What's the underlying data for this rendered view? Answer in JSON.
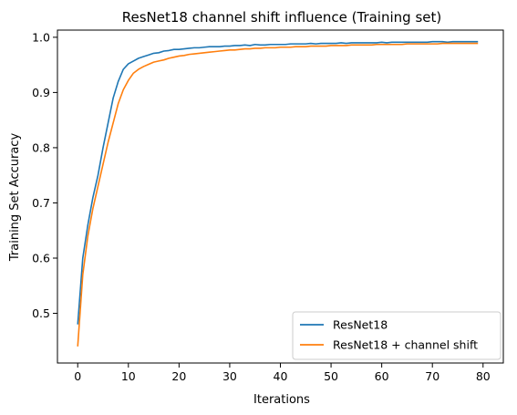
{
  "chart_data": {
    "type": "line",
    "title": "ResNet18 channel shift influence (Training set)",
    "xlabel": "Iterations",
    "ylabel": "Training Set Accuracy",
    "xlim": [
      -4,
      84
    ],
    "ylim": [
      0.41,
      1.013
    ],
    "xticks": [
      0,
      10,
      20,
      30,
      40,
      50,
      60,
      70,
      80
    ],
    "yticks": [
      0.5,
      0.6,
      0.7,
      0.8,
      0.9,
      1.0
    ],
    "xtick_labels": [
      "0",
      "10",
      "20",
      "30",
      "40",
      "50",
      "60",
      "70",
      "80"
    ],
    "ytick_labels": [
      "0.5",
      "0.6",
      "0.7",
      "0.8",
      "0.9",
      "1.0"
    ],
    "grid": false,
    "legend_position": "lower-right",
    "series": [
      {
        "name": "ResNet18",
        "color": "#1f77b4",
        "x": [
          0,
          1,
          2,
          3,
          4,
          5,
          6,
          7,
          8,
          9,
          10,
          11,
          12,
          13,
          14,
          15,
          16,
          17,
          18,
          19,
          20,
          21,
          22,
          23,
          24,
          25,
          26,
          27,
          28,
          29,
          30,
          31,
          32,
          33,
          34,
          35,
          36,
          37,
          38,
          39,
          40,
          41,
          42,
          43,
          44,
          45,
          46,
          47,
          48,
          49,
          50,
          51,
          52,
          53,
          54,
          55,
          56,
          57,
          58,
          59,
          60,
          61,
          62,
          63,
          64,
          65,
          66,
          67,
          68,
          69,
          70,
          71,
          72,
          73,
          74,
          75,
          76,
          77,
          78,
          79
        ],
        "values": [
          0.48,
          0.6,
          0.66,
          0.71,
          0.75,
          0.8,
          0.845,
          0.89,
          0.92,
          0.942,
          0.952,
          0.957,
          0.962,
          0.965,
          0.968,
          0.971,
          0.972,
          0.975,
          0.976,
          0.978,
          0.978,
          0.979,
          0.98,
          0.981,
          0.981,
          0.982,
          0.983,
          0.983,
          0.983,
          0.984,
          0.984,
          0.985,
          0.985,
          0.986,
          0.985,
          0.987,
          0.986,
          0.986,
          0.987,
          0.987,
          0.987,
          0.987,
          0.988,
          0.988,
          0.988,
          0.988,
          0.989,
          0.988,
          0.989,
          0.989,
          0.989,
          0.989,
          0.99,
          0.989,
          0.99,
          0.99,
          0.99,
          0.99,
          0.99,
          0.99,
          0.991,
          0.99,
          0.991,
          0.991,
          0.991,
          0.991,
          0.991,
          0.991,
          0.991,
          0.991,
          0.992,
          0.992,
          0.992,
          0.991,
          0.992,
          0.992,
          0.992,
          0.992,
          0.992,
          0.992
        ]
      },
      {
        "name": "ResNet18 + channel shift",
        "color": "#ff7f0e",
        "x": [
          0,
          1,
          2,
          3,
          4,
          5,
          6,
          7,
          8,
          9,
          10,
          11,
          12,
          13,
          14,
          15,
          16,
          17,
          18,
          19,
          20,
          21,
          22,
          23,
          24,
          25,
          26,
          27,
          28,
          29,
          30,
          31,
          32,
          33,
          34,
          35,
          36,
          37,
          38,
          39,
          40,
          41,
          42,
          43,
          44,
          45,
          46,
          47,
          48,
          49,
          50,
          51,
          52,
          53,
          54,
          55,
          56,
          57,
          58,
          59,
          60,
          61,
          62,
          63,
          64,
          65,
          66,
          67,
          68,
          69,
          70,
          71,
          72,
          73,
          74,
          75,
          76,
          77,
          78,
          79
        ],
        "values": [
          0.44,
          0.57,
          0.64,
          0.69,
          0.73,
          0.77,
          0.81,
          0.845,
          0.88,
          0.905,
          0.922,
          0.935,
          0.942,
          0.947,
          0.951,
          0.955,
          0.957,
          0.959,
          0.962,
          0.964,
          0.966,
          0.967,
          0.969,
          0.97,
          0.971,
          0.972,
          0.973,
          0.974,
          0.975,
          0.976,
          0.977,
          0.977,
          0.978,
          0.979,
          0.979,
          0.98,
          0.98,
          0.981,
          0.981,
          0.981,
          0.982,
          0.982,
          0.982,
          0.983,
          0.983,
          0.983,
          0.984,
          0.984,
          0.984,
          0.984,
          0.985,
          0.985,
          0.985,
          0.985,
          0.986,
          0.986,
          0.986,
          0.986,
          0.986,
          0.987,
          0.987,
          0.987,
          0.987,
          0.987,
          0.987,
          0.988,
          0.988,
          0.988,
          0.988,
          0.988,
          0.988,
          0.988,
          0.989,
          0.989,
          0.989,
          0.989,
          0.989,
          0.989,
          0.989,
          0.989
        ]
      }
    ]
  }
}
